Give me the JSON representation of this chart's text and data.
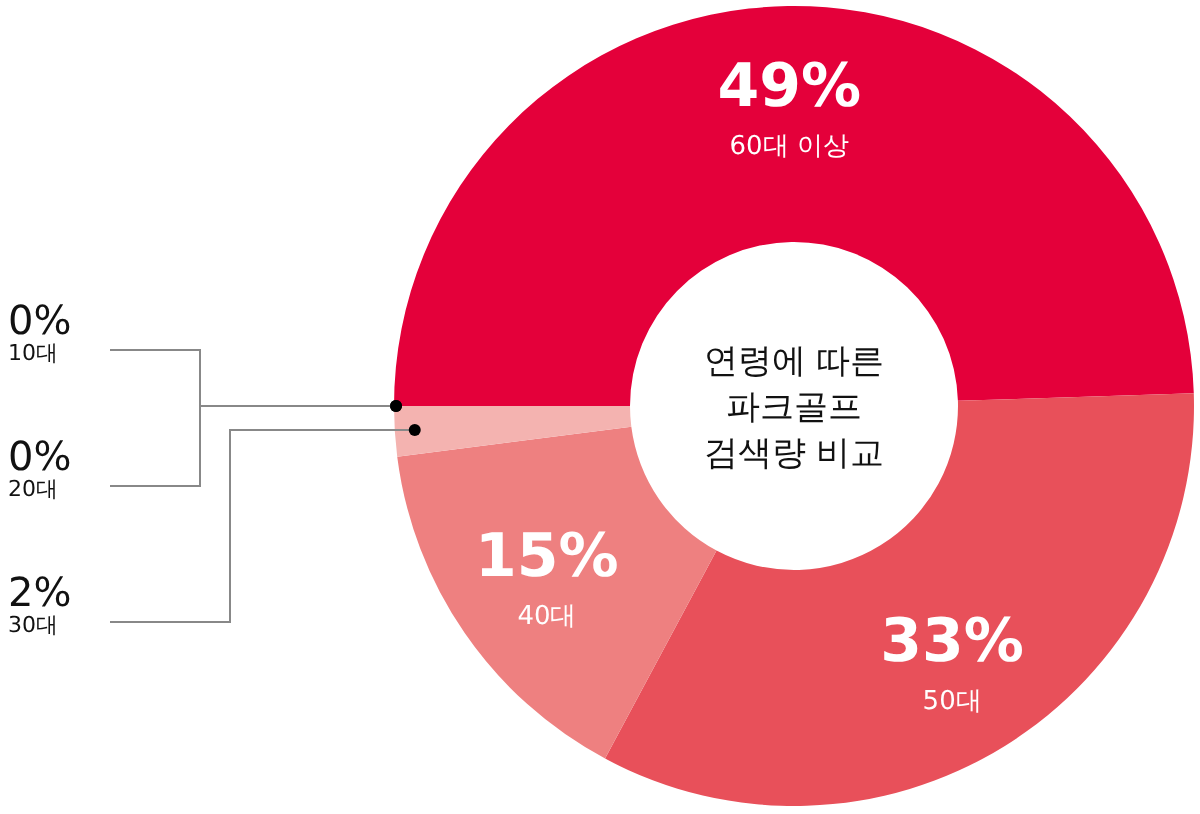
{
  "chart_data": {
    "type": "donut",
    "title": "연령에 따른\n파크골프\n검색량 비교",
    "categories": [
      "60대 이상",
      "50대",
      "40대",
      "30대",
      "20대",
      "10대"
    ],
    "values": [
      49,
      33,
      15,
      2,
      0,
      0
    ],
    "value_labels": [
      "49%",
      "33%",
      "15%",
      "2%",
      "0%",
      "0%"
    ],
    "colors": [
      "#e4003a",
      "#e8505a",
      "#ee8080",
      "#f4b3b0",
      "#f4b3b0",
      "#f4b3b0"
    ]
  }
}
